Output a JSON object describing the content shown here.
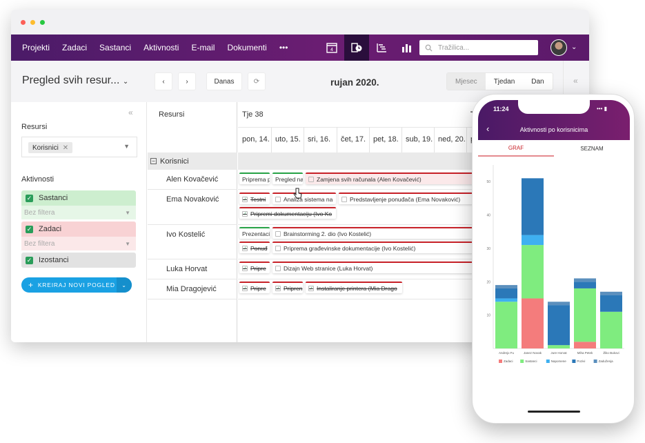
{
  "nav": {
    "items": [
      "Projekti",
      "Zadaci",
      "Sastanci",
      "Aktivnosti",
      "E-mail",
      "Dokumenti"
    ],
    "more": "•••",
    "calendar_day": "4",
    "search_placeholder": "Tražilica..."
  },
  "toolbar": {
    "title": "Pregled svih resur...",
    "today": "Danas",
    "period": "rujan 2020.",
    "views": [
      "Mjesec",
      "Tjedan",
      "Dan"
    ],
    "selected_view": "Mjesec"
  },
  "sidebar": {
    "resources_label": "Resursi",
    "resources_chip": "Korisnici",
    "activities_label": "Aktivnosti",
    "filters": [
      {
        "label": "Sastanci",
        "placeholder": "Bez filtera",
        "color": "#cdeecf"
      },
      {
        "label": "Zadaci",
        "placeholder": "Bez filtera",
        "color": "#f8d2d4"
      },
      {
        "label": "Izostanci",
        "color": "#e2e2e2"
      }
    ],
    "create_button": "KREIRAJ NOVI POGLED"
  },
  "resources": {
    "header": "Resursi",
    "group": "Korisnici",
    "people": [
      "Alen Kovačević",
      "Ema Novaković",
      "Ivo Kostelić",
      "Luka Horvat",
      "Mia Dragojević"
    ]
  },
  "calendar": {
    "week": "Tje 38",
    "week_next": "T",
    "days": [
      "pon, 14.",
      "uto, 15.",
      "sri, 16.",
      "čet, 17.",
      "pet, 18.",
      "sub, 19.",
      "ned, 20.",
      "p"
    ],
    "events": [
      {
        "text": "Priprema p",
        "type": "green"
      },
      {
        "text": "Pregled na",
        "type": "green"
      },
      {
        "text": "Zamjena svih računala (Alen Kovačević)",
        "type": "red"
      },
      {
        "text": "Testni",
        "type": "red"
      },
      {
        "text": "Analiza sistema na",
        "type": "red"
      },
      {
        "text": "Predstavljenje ponuđača (Ema Novaković)",
        "type": "red"
      },
      {
        "text": "Pripremi dokumentaciju (Ivo Ko",
        "type": "red"
      },
      {
        "text": "Prezentaci",
        "type": "green"
      },
      {
        "text": "Brainstorming 2. dio (Ivo Kostelić)",
        "type": "red"
      },
      {
        "text": "Ponuđ",
        "type": "red"
      },
      {
        "text": "Priprema građevinske dokumentacije (Ivo Kostelić)",
        "type": "red"
      },
      {
        "text": "Pripre",
        "type": "red"
      },
      {
        "text": "Dizajn Web stranice (Luka Horvat)",
        "type": "red"
      },
      {
        "text": "Pripre",
        "type": "red"
      },
      {
        "text": "Pripren",
        "type": "red"
      },
      {
        "text": "Instaliranje printera (Mia Drago",
        "type": "red"
      }
    ]
  },
  "phone": {
    "time": "11:24",
    "title": "Aktivnosti po korisnicima",
    "tabs": [
      "GRAF",
      "SEZNAM"
    ],
    "active_tab": "GRAF"
  },
  "chart_data": {
    "type": "bar",
    "stacked": true,
    "categories": [
      "Andrejo Fu",
      "Janez Novak",
      "Jure Horvat",
      "Miha Petek",
      "Žiko Bukovi"
    ],
    "series": [
      {
        "name": "Zadaci",
        "color": "#f47c7c",
        "values": [
          0,
          15,
          0,
          2,
          0
        ]
      },
      {
        "name": "Sastanci",
        "color": "#7fec7f",
        "values": [
          14,
          16,
          1,
          16,
          11
        ]
      },
      {
        "name": "Napomene",
        "color": "#3fb0f0",
        "values": [
          1,
          3,
          0,
          0,
          0
        ]
      },
      {
        "name": "Pozivi",
        "color": "#2b78b8",
        "values": [
          3,
          17,
          12,
          2,
          5
        ]
      },
      {
        "name": "Zaduženja",
        "color": "#5b8fbd",
        "values": [
          1,
          0,
          1,
          1,
          1
        ]
      }
    ],
    "ylim": [
      0,
      55
    ],
    "yticks": [
      10,
      20,
      30,
      40,
      50
    ],
    "legend_position": "bottom"
  }
}
